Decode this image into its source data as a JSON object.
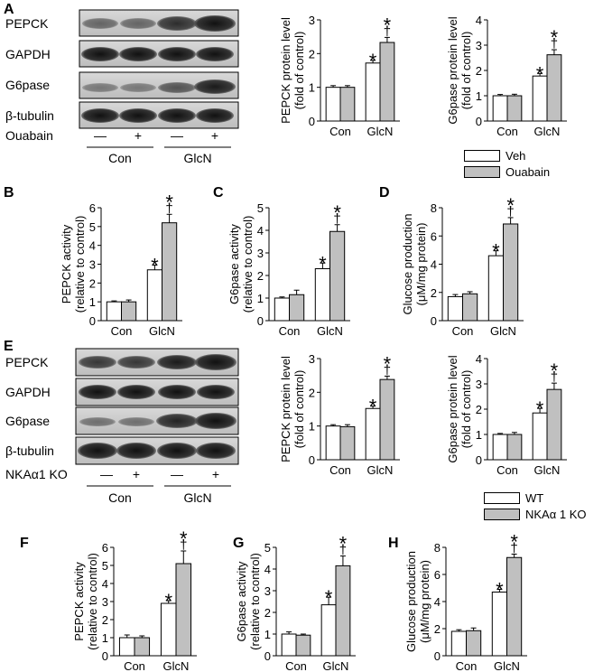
{
  "panels": {
    "A": "A",
    "B": "B",
    "C": "C",
    "D": "D",
    "E": "E",
    "F": "F",
    "G": "G",
    "H": "H"
  },
  "blot_A": {
    "rows": [
      "PEPCK",
      "GAPDH",
      "G6pase",
      "β-tubulin"
    ],
    "treatment_label": "Ouabain",
    "lane_marks": [
      "—",
      "+",
      "—",
      "+"
    ],
    "groups": [
      "Con",
      "GlcN"
    ]
  },
  "blot_E": {
    "rows": [
      "PEPCK",
      "GAPDH",
      "G6pase",
      "β-tubulin"
    ],
    "treatment_label": "NKAα1 KO",
    "lane_marks": [
      "—",
      "+",
      "—",
      "+"
    ],
    "groups": [
      "Con",
      "GlcN"
    ]
  },
  "legend_top": {
    "items": [
      {
        "label": "Veh",
        "color": "#ffffff"
      },
      {
        "label": "Ouabain",
        "color": "#c0c0c0"
      }
    ]
  },
  "legend_bottom": {
    "items": [
      {
        "label": "WT",
        "color": "#ffffff"
      },
      {
        "label": "NKAα 1 KO",
        "color": "#c0c0c0"
      }
    ]
  },
  "chart_data": [
    {
      "id": "A1",
      "type": "bar",
      "ylabel": "PEPCK protein level",
      "ylabel2": "(fold of control)",
      "categories": [
        "Con",
        "GlcN"
      ],
      "ylim": [
        0,
        3
      ],
      "yticks": [
        0,
        1,
        2,
        3
      ],
      "series": [
        {
          "color": "#ffffff",
          "values": [
            1.0,
            1.72
          ],
          "err": [
            0.05,
            0.08
          ]
        },
        {
          "color": "#c0c0c0",
          "values": [
            1.0,
            2.33
          ],
          "err": [
            0.05,
            0.15
          ]
        }
      ],
      "marks": [
        {
          "series": 0,
          "cat": 1,
          "text": "*"
        },
        {
          "series": 1,
          "cat": 1,
          "text": "*†"
        }
      ]
    },
    {
      "id": "A2",
      "type": "bar",
      "ylabel": "G6pase protein level",
      "ylabel2": "(fold of control)",
      "categories": [
        "Con",
        "GlcN"
      ],
      "ylim": [
        0,
        4
      ],
      "yticks": [
        0,
        1,
        2,
        3,
        4
      ],
      "series": [
        {
          "color": "#ffffff",
          "values": [
            1.0,
            1.78
          ],
          "err": [
            0.05,
            0.1
          ]
        },
        {
          "color": "#c0c0c0",
          "values": [
            1.0,
            2.62
          ],
          "err": [
            0.06,
            0.2
          ]
        }
      ],
      "marks": [
        {
          "series": 0,
          "cat": 1,
          "text": "*"
        },
        {
          "series": 1,
          "cat": 1,
          "text": "*†"
        }
      ]
    },
    {
      "id": "B",
      "type": "bar",
      "ylabel": "PEPCK activity",
      "ylabel2": "(relative to control)",
      "categories": [
        "Con",
        "GlcN"
      ],
      "ylim": [
        0,
        6
      ],
      "yticks": [
        0,
        1,
        2,
        3,
        4,
        5,
        6
      ],
      "series": [
        {
          "color": "#ffffff",
          "values": [
            1.0,
            2.7
          ],
          "err": [
            0.05,
            0.25
          ]
        },
        {
          "color": "#c0c0c0",
          "values": [
            1.0,
            5.2
          ],
          "err": [
            0.1,
            0.45
          ]
        }
      ],
      "marks": [
        {
          "series": 0,
          "cat": 1,
          "text": "*"
        },
        {
          "series": 1,
          "cat": 1,
          "text": "*†"
        }
      ]
    },
    {
      "id": "C",
      "type": "bar",
      "ylabel": "G6pase activity",
      "ylabel2": "(relative to control)",
      "categories": [
        "Con",
        "GlcN"
      ],
      "ylim": [
        0,
        5
      ],
      "yticks": [
        0,
        1,
        2,
        3,
        4,
        5
      ],
      "series": [
        {
          "color": "#ffffff",
          "values": [
            1.0,
            2.3
          ],
          "err": [
            0.05,
            0.25
          ]
        },
        {
          "color": "#c0c0c0",
          "values": [
            1.15,
            3.95
          ],
          "err": [
            0.2,
            0.3
          ]
        }
      ],
      "marks": [
        {
          "series": 0,
          "cat": 1,
          "text": "*"
        },
        {
          "series": 1,
          "cat": 1,
          "text": "*†"
        }
      ]
    },
    {
      "id": "D",
      "type": "bar",
      "ylabel": "Glucose production",
      "ylabel2": "(μM/mg protein)",
      "categories": [
        "Con",
        "GlcN"
      ],
      "ylim": [
        0,
        8
      ],
      "yticks": [
        0,
        2,
        4,
        6,
        8
      ],
      "series": [
        {
          "color": "#ffffff",
          "values": [
            1.7,
            4.6
          ],
          "err": [
            0.15,
            0.35
          ]
        },
        {
          "color": "#c0c0c0",
          "values": [
            1.9,
            6.85
          ],
          "err": [
            0.15,
            0.45
          ]
        }
      ],
      "marks": [
        {
          "series": 0,
          "cat": 1,
          "text": "*"
        },
        {
          "series": 1,
          "cat": 1,
          "text": "*†"
        }
      ]
    },
    {
      "id": "E1",
      "type": "bar",
      "ylabel": "PEPCK protein level",
      "ylabel2": "(fold of control)",
      "categories": [
        "Con",
        "GlcN"
      ],
      "ylim": [
        0,
        3
      ],
      "yticks": [
        0,
        1,
        2,
        3
      ],
      "series": [
        {
          "color": "#ffffff",
          "values": [
            1.0,
            1.52
          ],
          "err": [
            0.04,
            0.07
          ]
        },
        {
          "color": "#c0c0c0",
          "values": [
            0.98,
            2.38
          ],
          "err": [
            0.06,
            0.1
          ]
        }
      ],
      "marks": [
        {
          "series": 0,
          "cat": 1,
          "text": "*"
        },
        {
          "series": 1,
          "cat": 1,
          "text": "*†"
        }
      ]
    },
    {
      "id": "E2",
      "type": "bar",
      "ylabel": "G6pase protein level",
      "ylabel2": "(fold of control)",
      "categories": [
        "Con",
        "GlcN"
      ],
      "ylim": [
        0,
        4
      ],
      "yticks": [
        0,
        1,
        2,
        3,
        4
      ],
      "series": [
        {
          "color": "#ffffff",
          "values": [
            1.0,
            1.85
          ],
          "err": [
            0.04,
            0.18
          ]
        },
        {
          "color": "#c0c0c0",
          "values": [
            1.0,
            2.78
          ],
          "err": [
            0.08,
            0.25
          ]
        }
      ],
      "marks": [
        {
          "series": 0,
          "cat": 1,
          "text": "*"
        },
        {
          "series": 1,
          "cat": 1,
          "text": "*†"
        }
      ]
    },
    {
      "id": "F",
      "type": "bar",
      "ylabel": "PEPCK activity",
      "ylabel2": "(relative to control)",
      "categories": [
        "Con",
        "GlcN"
      ],
      "ylim": [
        0,
        6
      ],
      "yticks": [
        0,
        1,
        2,
        3,
        4,
        5,
        6
      ],
      "series": [
        {
          "color": "#ffffff",
          "values": [
            1.0,
            2.9
          ],
          "err": [
            0.15,
            0.15
          ]
        },
        {
          "color": "#c0c0c0",
          "values": [
            1.0,
            5.1
          ],
          "err": [
            0.1,
            0.7
          ]
        }
      ],
      "marks": [
        {
          "series": 0,
          "cat": 1,
          "text": "*"
        },
        {
          "series": 1,
          "cat": 1,
          "text": "*†"
        }
      ]
    },
    {
      "id": "G",
      "type": "bar",
      "ylabel": "G6pase activity",
      "ylabel2": "(relative to control)",
      "categories": [
        "Con",
        "GlcN"
      ],
      "ylim": [
        0,
        5
      ],
      "yticks": [
        0,
        1,
        2,
        3,
        4,
        5
      ],
      "series": [
        {
          "color": "#ffffff",
          "values": [
            1.0,
            2.35
          ],
          "err": [
            0.1,
            0.35
          ]
        },
        {
          "color": "#c0c0c0",
          "values": [
            0.95,
            4.15
          ],
          "err": [
            0.05,
            0.45
          ]
        }
      ],
      "marks": [
        {
          "series": 0,
          "cat": 1,
          "text": "*"
        },
        {
          "series": 1,
          "cat": 1,
          "text": "*†"
        }
      ]
    },
    {
      "id": "H",
      "type": "bar",
      "ylabel": "Glucose production",
      "ylabel2": "(μM/mg protein)",
      "categories": [
        "Con",
        "GlcN"
      ],
      "ylim": [
        0,
        8
      ],
      "yticks": [
        0,
        2,
        4,
        6,
        8
      ],
      "series": [
        {
          "color": "#ffffff",
          "values": [
            1.8,
            4.7
          ],
          "err": [
            0.12,
            0.2
          ]
        },
        {
          "color": "#c0c0c0",
          "values": [
            1.85,
            7.25
          ],
          "err": [
            0.2,
            0.25
          ]
        }
      ],
      "marks": [
        {
          "series": 0,
          "cat": 1,
          "text": "*"
        },
        {
          "series": 1,
          "cat": 1,
          "text": "*†"
        }
      ]
    }
  ]
}
